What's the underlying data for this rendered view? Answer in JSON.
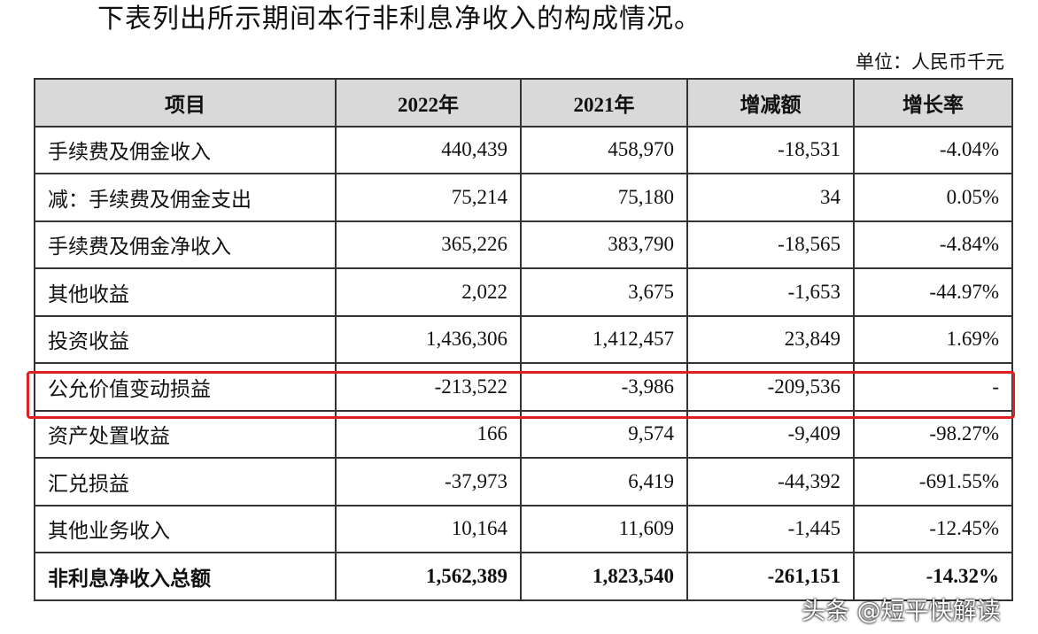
{
  "header": {
    "title": "下表列出所示期间本行非利息净收入的构成情况。",
    "unit": "单位：人民币千元"
  },
  "table": {
    "columns": [
      "项目",
      "2022年",
      "2021年",
      "增减额",
      "增长率"
    ],
    "rows": [
      [
        "手续费及佣金收入",
        "440,439",
        "458,970",
        "-18,531",
        "-4.04%"
      ],
      [
        "减：手续费及佣金支出",
        "75,214",
        "75,180",
        "34",
        "0.05%"
      ],
      [
        "手续费及佣金净收入",
        "365,226",
        "383,790",
        "-18,565",
        "-4.84%"
      ],
      [
        "其他收益",
        "2,022",
        "3,675",
        "-1,653",
        "-44.97%"
      ],
      [
        "投资收益",
        "1,436,306",
        "1,412,457",
        "23,849",
        "1.69%"
      ],
      [
        "公允价值变动损益",
        "-213,522",
        "-3,986",
        "-209,536",
        "-"
      ],
      [
        "资产处置收益",
        "166",
        "9,574",
        "-9,409",
        "-98.27%"
      ],
      [
        "汇兑损益",
        "-37,973",
        "6,419",
        "-44,392",
        "-691.55%"
      ],
      [
        "其他业务收入",
        "10,164",
        "11,609",
        "-1,445",
        "-12.45%"
      ],
      [
        "非利息净收入总额",
        "1,562,389",
        "1,823,540",
        "-261,151",
        "-14.32%"
      ]
    ]
  },
  "watermark": "头条 @短平快解读"
}
